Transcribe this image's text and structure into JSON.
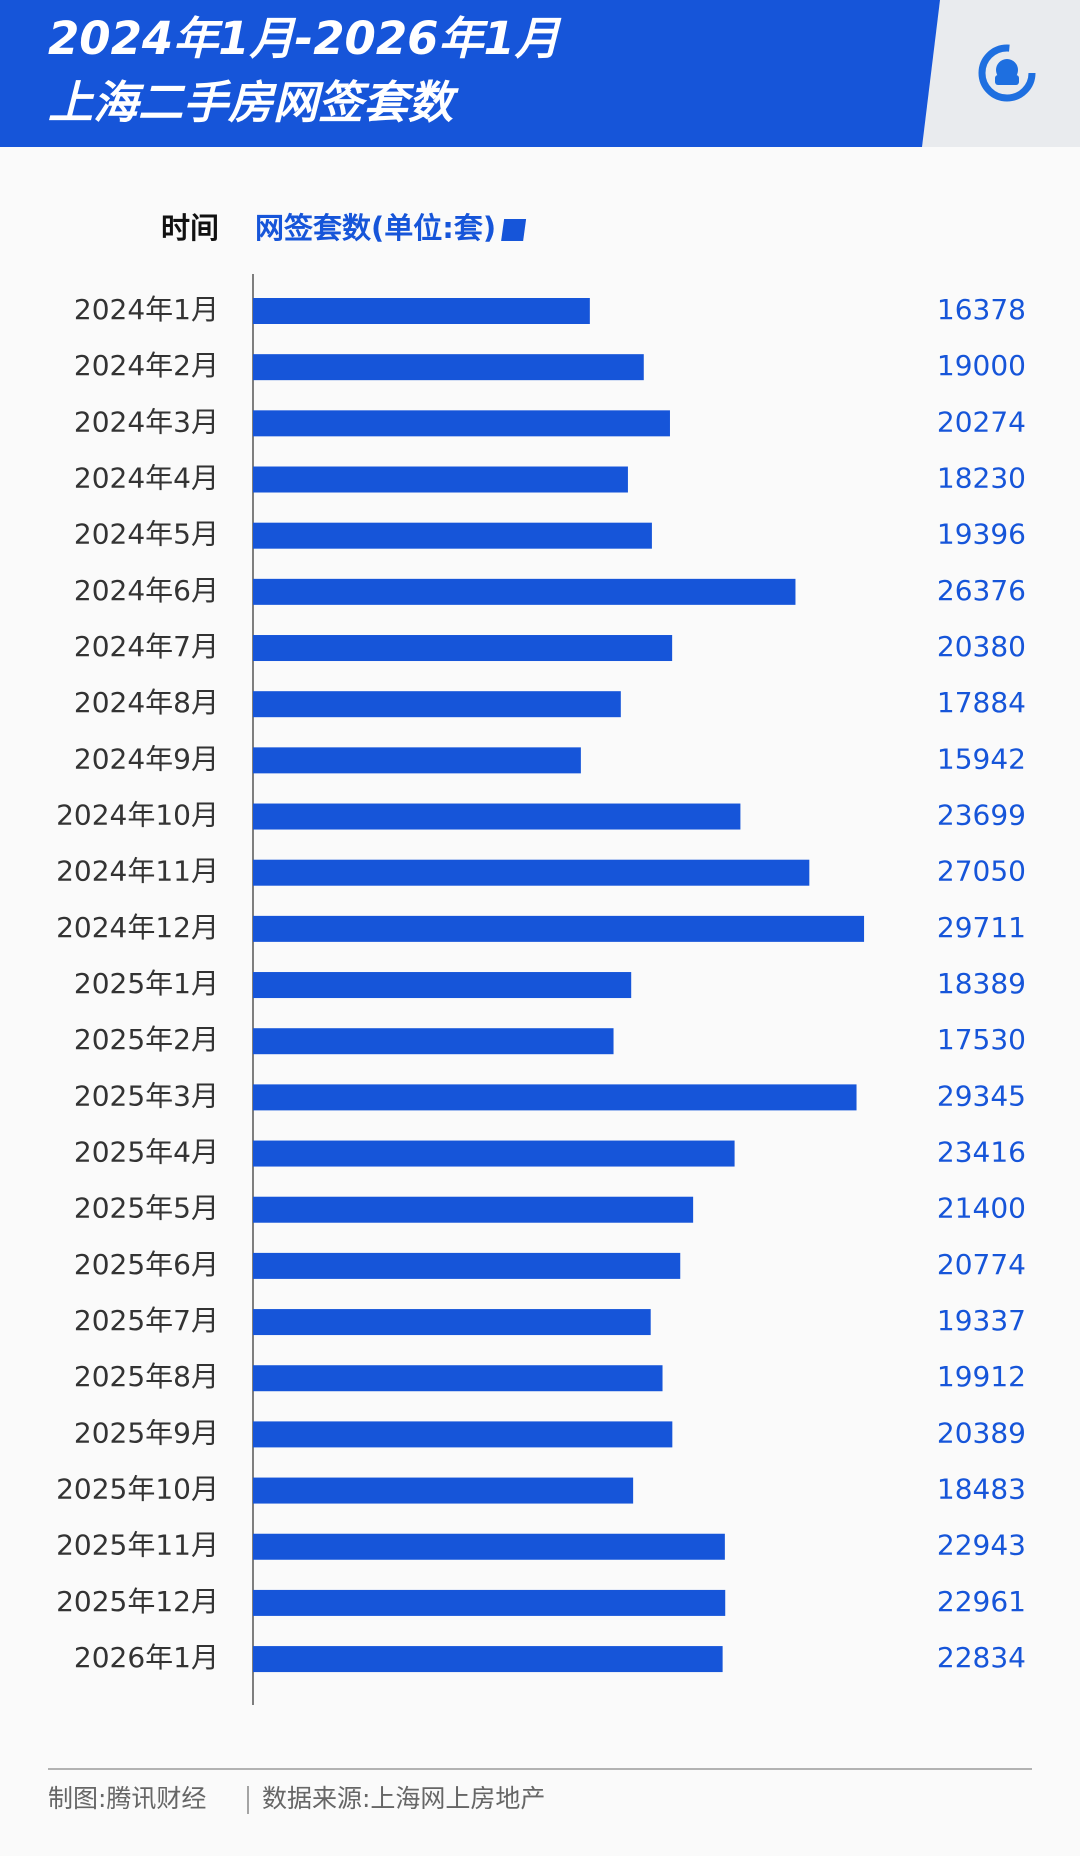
{
  "chart_data": {
    "type": "bar",
    "title": [
      "2024年1月-2026年1月",
      "上海二手房网签套数"
    ],
    "category_label": "时间",
    "categories": [
      "2024年1月",
      "2024年2月",
      "2024年3月",
      "2024年4月",
      "2024年5月",
      "2024年6月",
      "2024年7月",
      "2024年8月",
      "2024年9月",
      "2024年10月",
      "2024年11月",
      "2024年12月",
      "2025年1月",
      "2025年2月",
      "2025年3月",
      "2025年4月",
      "2025年5月",
      "2025年6月",
      "2025年7月",
      "2025年8月",
      "2025年9月",
      "2025年10月",
      "2025年11月",
      "2025年12月",
      "2026年1月"
    ],
    "series": [
      {
        "name": "网签套数(单位:套)",
        "color": "#1655d9",
        "values": [
          16378,
          19000,
          20274,
          18230,
          19396,
          26376,
          20380,
          17884,
          15942,
          23699,
          27050,
          29711,
          18389,
          17530,
          29345,
          23416,
          21400,
          20774,
          19337,
          19912,
          20389,
          18483,
          22943,
          22961,
          22834
        ]
      }
    ],
    "xlim": [
      0,
      30000
    ],
    "footer": [
      "制图:腾讯财经",
      "数据来源:上海网上房地产"
    ]
  }
}
